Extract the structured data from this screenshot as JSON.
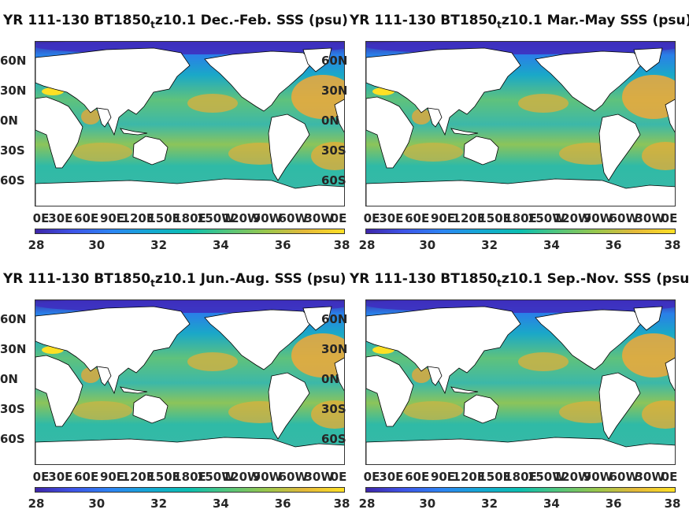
{
  "colors": {
    "land": "#ffffff",
    "ocean_base": "#3cb8a8",
    "fresh": "#3e26a8",
    "mid": "#1fa8c6",
    "salty": "#f0a83a",
    "very_salty": "#fde025"
  },
  "lat_labels": [
    "60N",
    "30N",
    "0N",
    "30S",
    "60S"
  ],
  "lon_labels": [
    "0E",
    "30E",
    "60E",
    "90E",
    "120E",
    "150E",
    "180E",
    "150W",
    "120W",
    "90W",
    "60W",
    "30W",
    "0E"
  ],
  "colorbar": {
    "ticks": [
      "28",
      "30",
      "32",
      "34",
      "36",
      "38"
    ],
    "range": [
      28,
      38
    ]
  },
  "panels": [
    {
      "title_prefix": "YR 111-130 BT1850",
      "title_sub": "t",
      "title_suffix": "z10.1 Dec.-Feb. SSS (psu)"
    },
    {
      "title_prefix": "YR 111-130 BT1850",
      "title_sub": "t",
      "title_suffix": "z10.1 Mar.-May SSS (psu)"
    },
    {
      "title_prefix": "YR 111-130 BT1850",
      "title_sub": "t",
      "title_suffix": "z10.1 Jun.-Aug. SSS (psu)"
    },
    {
      "title_prefix": "YR 111-130 BT1850",
      "title_sub": "t",
      "title_suffix": "z10.1 Sep.-Nov. SSS (psu)"
    }
  ]
}
